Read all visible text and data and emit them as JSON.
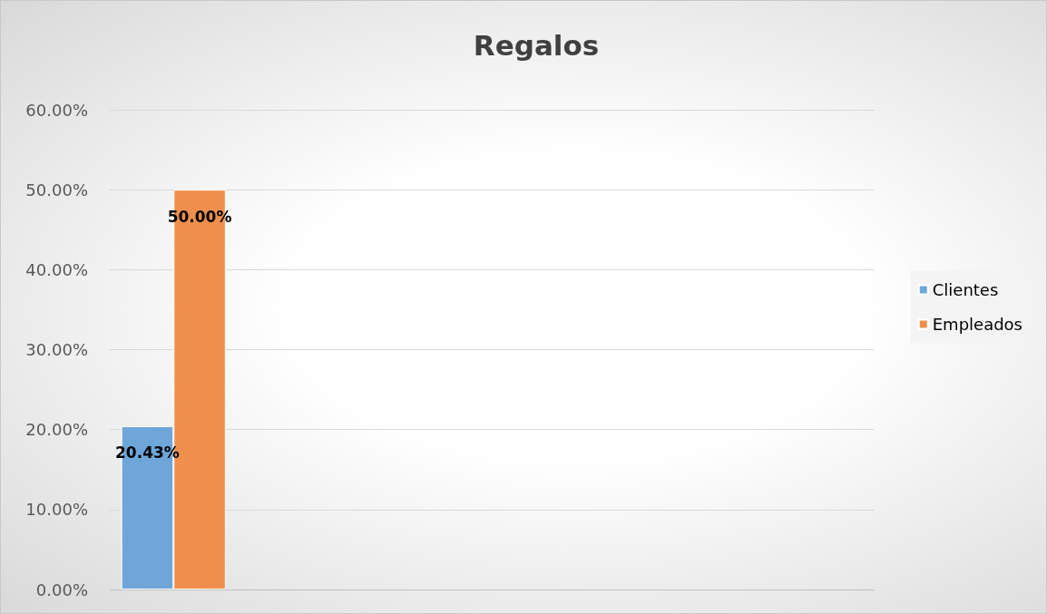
{
  "chart_data": {
    "type": "bar",
    "title": "Regalos",
    "categories": [
      null,
      null,
      null,
      null,
      null,
      null
    ],
    "series": [
      {
        "name": "Clientes",
        "color": "#6fa6da",
        "values": [
          20.43,
          null,
          null,
          null,
          null,
          null
        ],
        "value_labels": [
          "20.43%",
          null,
          null,
          null,
          null,
          null
        ]
      },
      {
        "name": "Empleados",
        "color": "#f08f4d",
        "values": [
          50,
          null,
          null,
          null,
          null,
          null
        ],
        "value_labels": [
          "50.00%",
          null,
          null,
          null,
          null,
          null
        ]
      }
    ],
    "ylim": [
      0,
      60
    ],
    "yticks": [
      {
        "value": 0,
        "label": "0.00%"
      },
      {
        "value": 10,
        "label": "10.00%"
      },
      {
        "value": 20,
        "label": "20.00%"
      },
      {
        "value": 30,
        "label": "30.00%"
      },
      {
        "value": 40,
        "label": "40.00%"
      },
      {
        "value": 50,
        "label": "50.00%"
      },
      {
        "value": 60,
        "label": "60.00%"
      }
    ],
    "grid": "y",
    "legend": "right"
  }
}
